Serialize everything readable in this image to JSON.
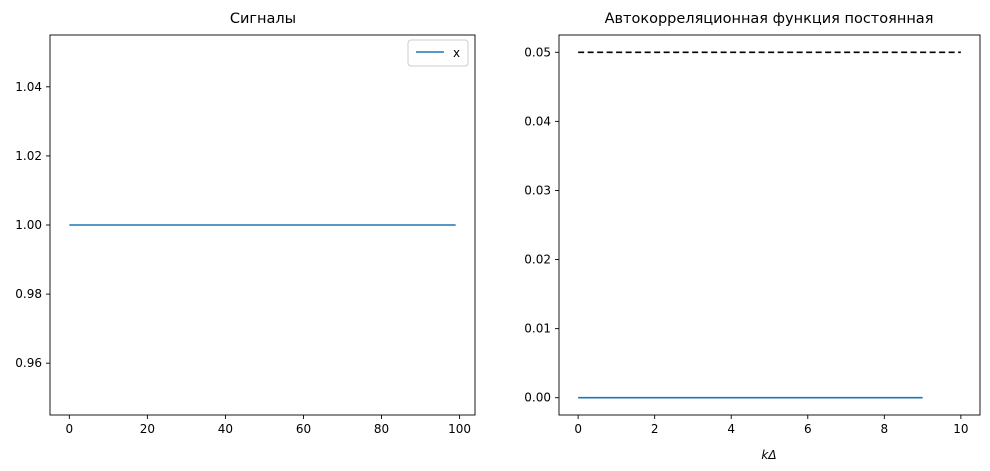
{
  "chart_data": [
    {
      "type": "line",
      "title": "Сигналы",
      "xlabel": "",
      "ylabel": "",
      "xlim": [
        -4.95,
        103.95
      ],
      "ylim": [
        0.945,
        1.055
      ],
      "xticks": [
        0,
        20,
        40,
        60,
        80,
        100
      ],
      "xtick_labels": [
        "0",
        "20",
        "40",
        "60",
        "80",
        "100"
      ],
      "yticks": [
        0.96,
        0.98,
        1.0,
        1.02,
        1.04
      ],
      "ytick_labels": [
        "0.96",
        "0.98",
        "1.00",
        "1.02",
        "1.04"
      ],
      "legend": "top-right",
      "grid": false,
      "series": [
        {
          "name": "x",
          "color": "#1f77b4",
          "style": "solid",
          "x": [
            0,
            99
          ],
          "y": [
            1.0,
            1.0
          ]
        }
      ]
    },
    {
      "type": "line",
      "title": "Автокорреляционная функция постоянная",
      "xlabel": "kΔ",
      "ylabel": "",
      "xlim": [
        -0.5,
        10.5
      ],
      "ylim": [
        -0.0025,
        0.0525
      ],
      "xticks": [
        0,
        2,
        4,
        6,
        8,
        10
      ],
      "xtick_labels": [
        "0",
        "2",
        "4",
        "6",
        "8",
        "10"
      ],
      "yticks": [
        0.0,
        0.01,
        0.02,
        0.03,
        0.04,
        0.05
      ],
      "ytick_labels": [
        "0.00",
        "0.01",
        "0.02",
        "0.03",
        "0.04",
        "0.05"
      ],
      "grid": false,
      "series": [
        {
          "color": "#1f77b4",
          "style": "solid",
          "x": [
            0,
            9
          ],
          "y": [
            0.0,
            0.0
          ]
        },
        {
          "color": "#000000",
          "style": "dashed",
          "x": [
            0,
            10
          ],
          "y": [
            0.05,
            0.05
          ]
        }
      ]
    }
  ]
}
